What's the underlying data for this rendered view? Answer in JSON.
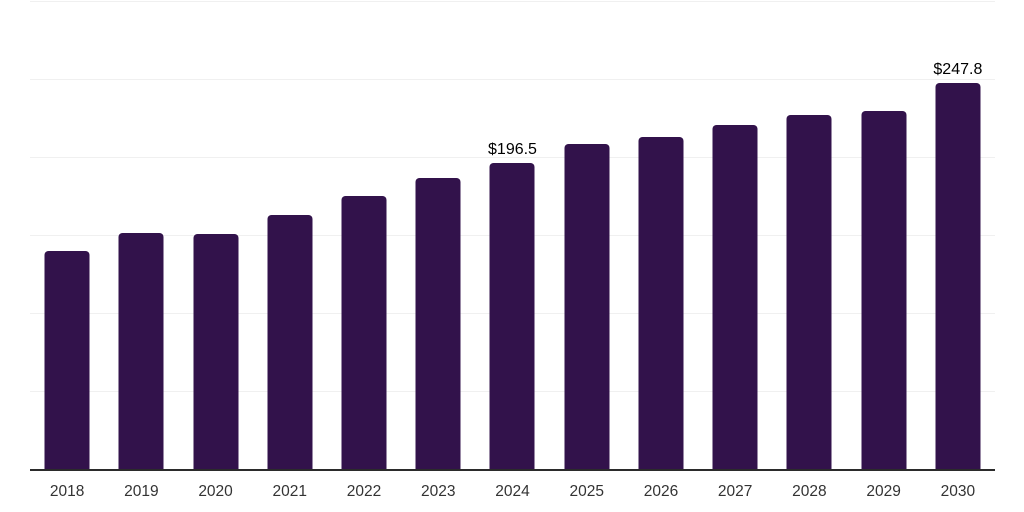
{
  "chart_data": {
    "type": "bar",
    "categories": [
      "2018",
      "2019",
      "2020",
      "2021",
      "2022",
      "2023",
      "2024",
      "2025",
      "2026",
      "2027",
      "2028",
      "2029",
      "2030"
    ],
    "values": [
      140.5,
      151.9,
      151.2,
      163.3,
      175.6,
      187.3,
      196.5,
      209.1,
      213.3,
      221.0,
      227.4,
      230.4,
      247.8
    ],
    "bar_labels": [
      "",
      "",
      "",
      "",
      "",
      "",
      "$196.5",
      "",
      "",
      "",
      "",
      "",
      "$247.8"
    ],
    "ylim": [
      0,
      300
    ],
    "gridline_step": 50,
    "grid": true,
    "legend": "none",
    "colors": {
      "bar": "#32124B",
      "gridline": "#F0F0F0",
      "axis_line": "#2B2B2B",
      "tick_label": "#333333",
      "value_label": "#000000",
      "background": "#FFFFFF"
    }
  }
}
